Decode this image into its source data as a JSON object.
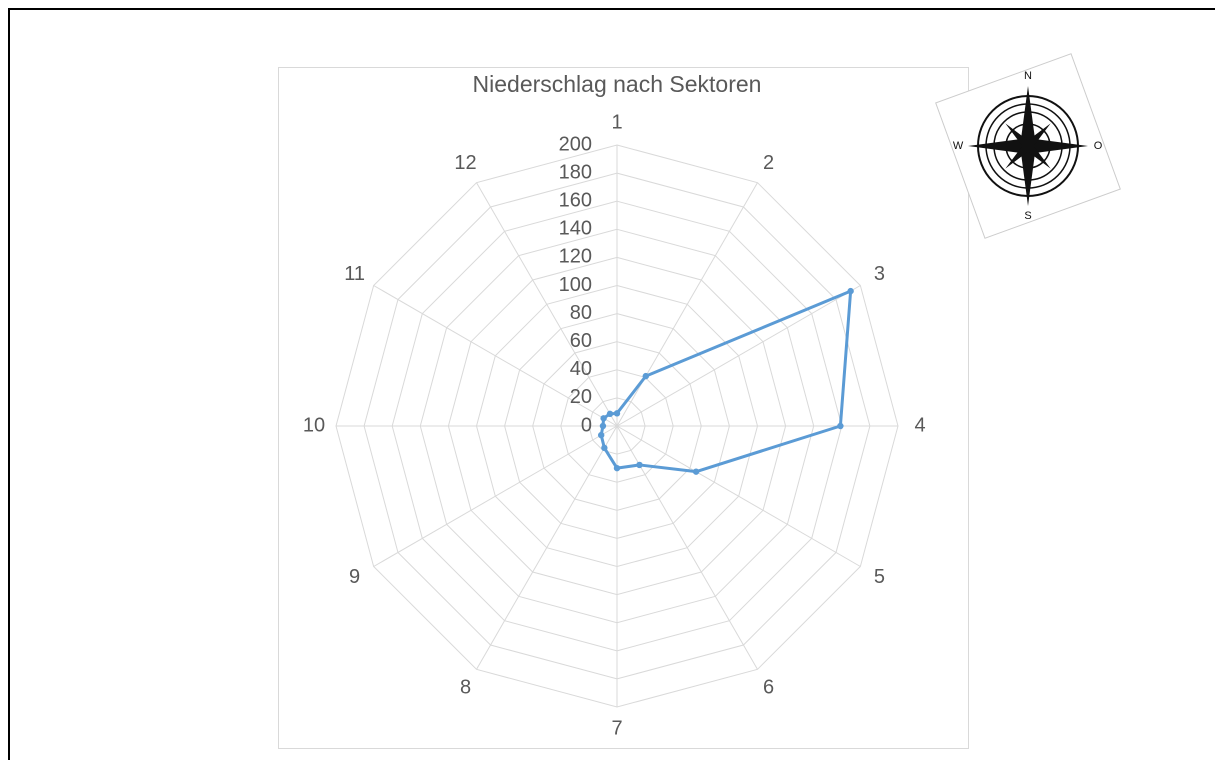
{
  "chart_data": {
    "type": "radar",
    "title": "Niederschlag nach Sektoren",
    "categories": [
      "1",
      "2",
      "3",
      "4",
      "5",
      "6",
      "7",
      "8",
      "9",
      "10",
      "11",
      "12"
    ],
    "series": [
      {
        "color": "#5b9bd5",
        "values": [
          9,
          41,
          192,
          159,
          65,
          32,
          30,
          18,
          13,
          10,
          11,
          10
        ]
      }
    ],
    "ylim": [
      0,
      200
    ],
    "yticks": [
      0,
      20,
      40,
      60,
      80,
      100,
      120,
      140,
      160,
      180,
      200
    ],
    "grid": true
  },
  "compass": {
    "north": "N",
    "east": "O",
    "south": "S",
    "west": "W"
  }
}
